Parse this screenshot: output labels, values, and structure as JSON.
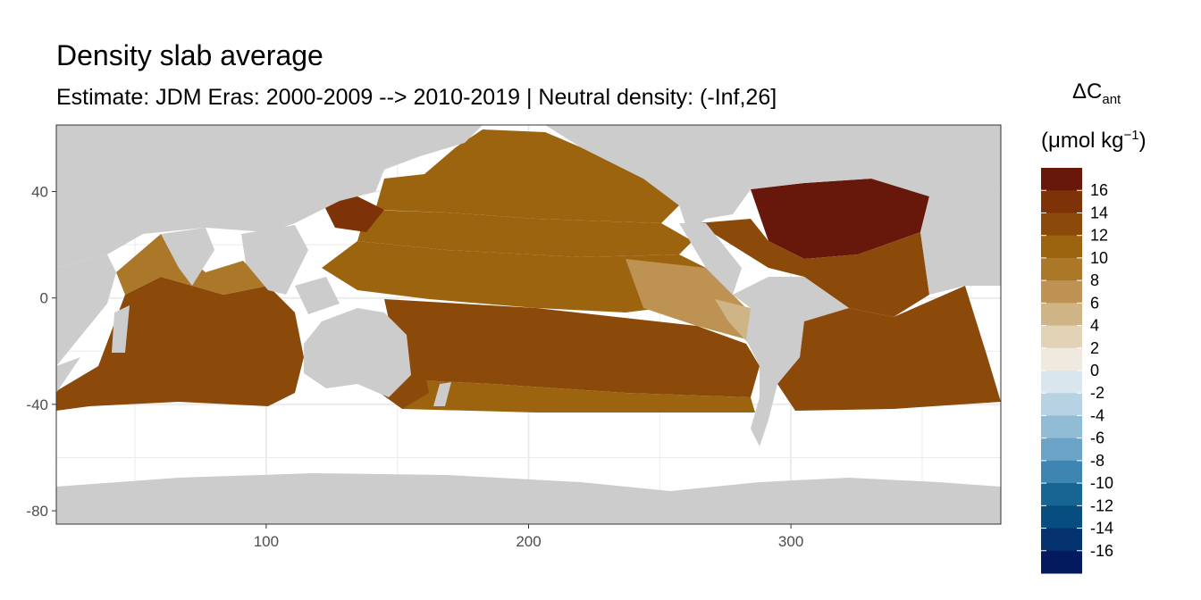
{
  "header": {
    "title": "Density slab average",
    "subtitle": "Estimate: JDM Eras: 2000-2009 --> 2010-2019 | Neutral density: (-Inf,26]"
  },
  "legend": {
    "symbol": "ΔC",
    "subscript": "ant",
    "unit_prefix": "(μmol kg",
    "unit_superscript": "−1",
    "unit_suffix": ")"
  },
  "colors": {
    "land": "#cccccc",
    "no_data": "#ffffff",
    "panel_border": "#333333",
    "grid": "#ebebeb"
  },
  "chart_data": {
    "type": "heatmap",
    "title": "Density slab average",
    "subtitle": "Estimate: JDM Eras: 2000-2009 --> 2010-2019 | Neutral density: (-Inf,26]",
    "xlabel": "",
    "ylabel": "",
    "xlim": [
      20,
      380
    ],
    "ylim": [
      -85,
      65
    ],
    "x_ticks": [
      100,
      200,
      300
    ],
    "y_ticks": [
      40,
      0,
      -40,
      -80
    ],
    "grid": "on",
    "legend_position": "right",
    "legend_title": "ΔCant (μmol kg−1)",
    "color_bins": [
      {
        "label": "16",
        "color": "#67180a"
      },
      {
        "label": "14",
        "color": "#7e3207"
      },
      {
        "label": "12",
        "color": "#8c4a0a"
      },
      {
        "label": "10",
        "color": "#9c640f"
      },
      {
        "label": "8",
        "color": "#aa7828"
      },
      {
        "label": "6",
        "color": "#bd9252"
      },
      {
        "label": "4",
        "color": "#cfb486"
      },
      {
        "label": "2",
        "color": "#e2d3b6"
      },
      {
        "label": "0",
        "color": "#efe9e0"
      },
      {
        "label": "-2",
        "color": "#dae6ed"
      },
      {
        "label": "-4",
        "color": "#b7d2e3"
      },
      {
        "label": "-6",
        "color": "#91bcd6"
      },
      {
        "label": "-8",
        "color": "#6aa3c6"
      },
      {
        "label": "-10",
        "color": "#3f85b1"
      },
      {
        "label": "-12",
        "color": "#176592"
      },
      {
        "label": "-14",
        "color": "#084d80"
      },
      {
        "label": "-16",
        "color": "#053370"
      },
      {
        "label": "",
        "color": "#031a5f"
      }
    ],
    "regions": [
      {
        "name": "north-pacific-subpolar",
        "value": 9
      },
      {
        "name": "north-pacific-subtropical",
        "value": 10
      },
      {
        "name": "equatorial-pacific",
        "value": 9
      },
      {
        "name": "eastern-tropical-pacific",
        "value": 6
      },
      {
        "name": "peru-coast",
        "value": 3
      },
      {
        "name": "south-pacific-subtropical",
        "value": 11
      },
      {
        "name": "southern-pacific-band",
        "value": 9
      },
      {
        "name": "north-atlantic-subtropical",
        "value": 15
      },
      {
        "name": "tropical-atlantic",
        "value": 12
      },
      {
        "name": "south-atlantic",
        "value": 11
      },
      {
        "name": "indian-ocean",
        "value": 11
      },
      {
        "name": "arabian-sea",
        "value": 8
      },
      {
        "name": "tasman-sea",
        "value": 11
      },
      {
        "name": "kuroshio",
        "value": 13
      }
    ]
  }
}
